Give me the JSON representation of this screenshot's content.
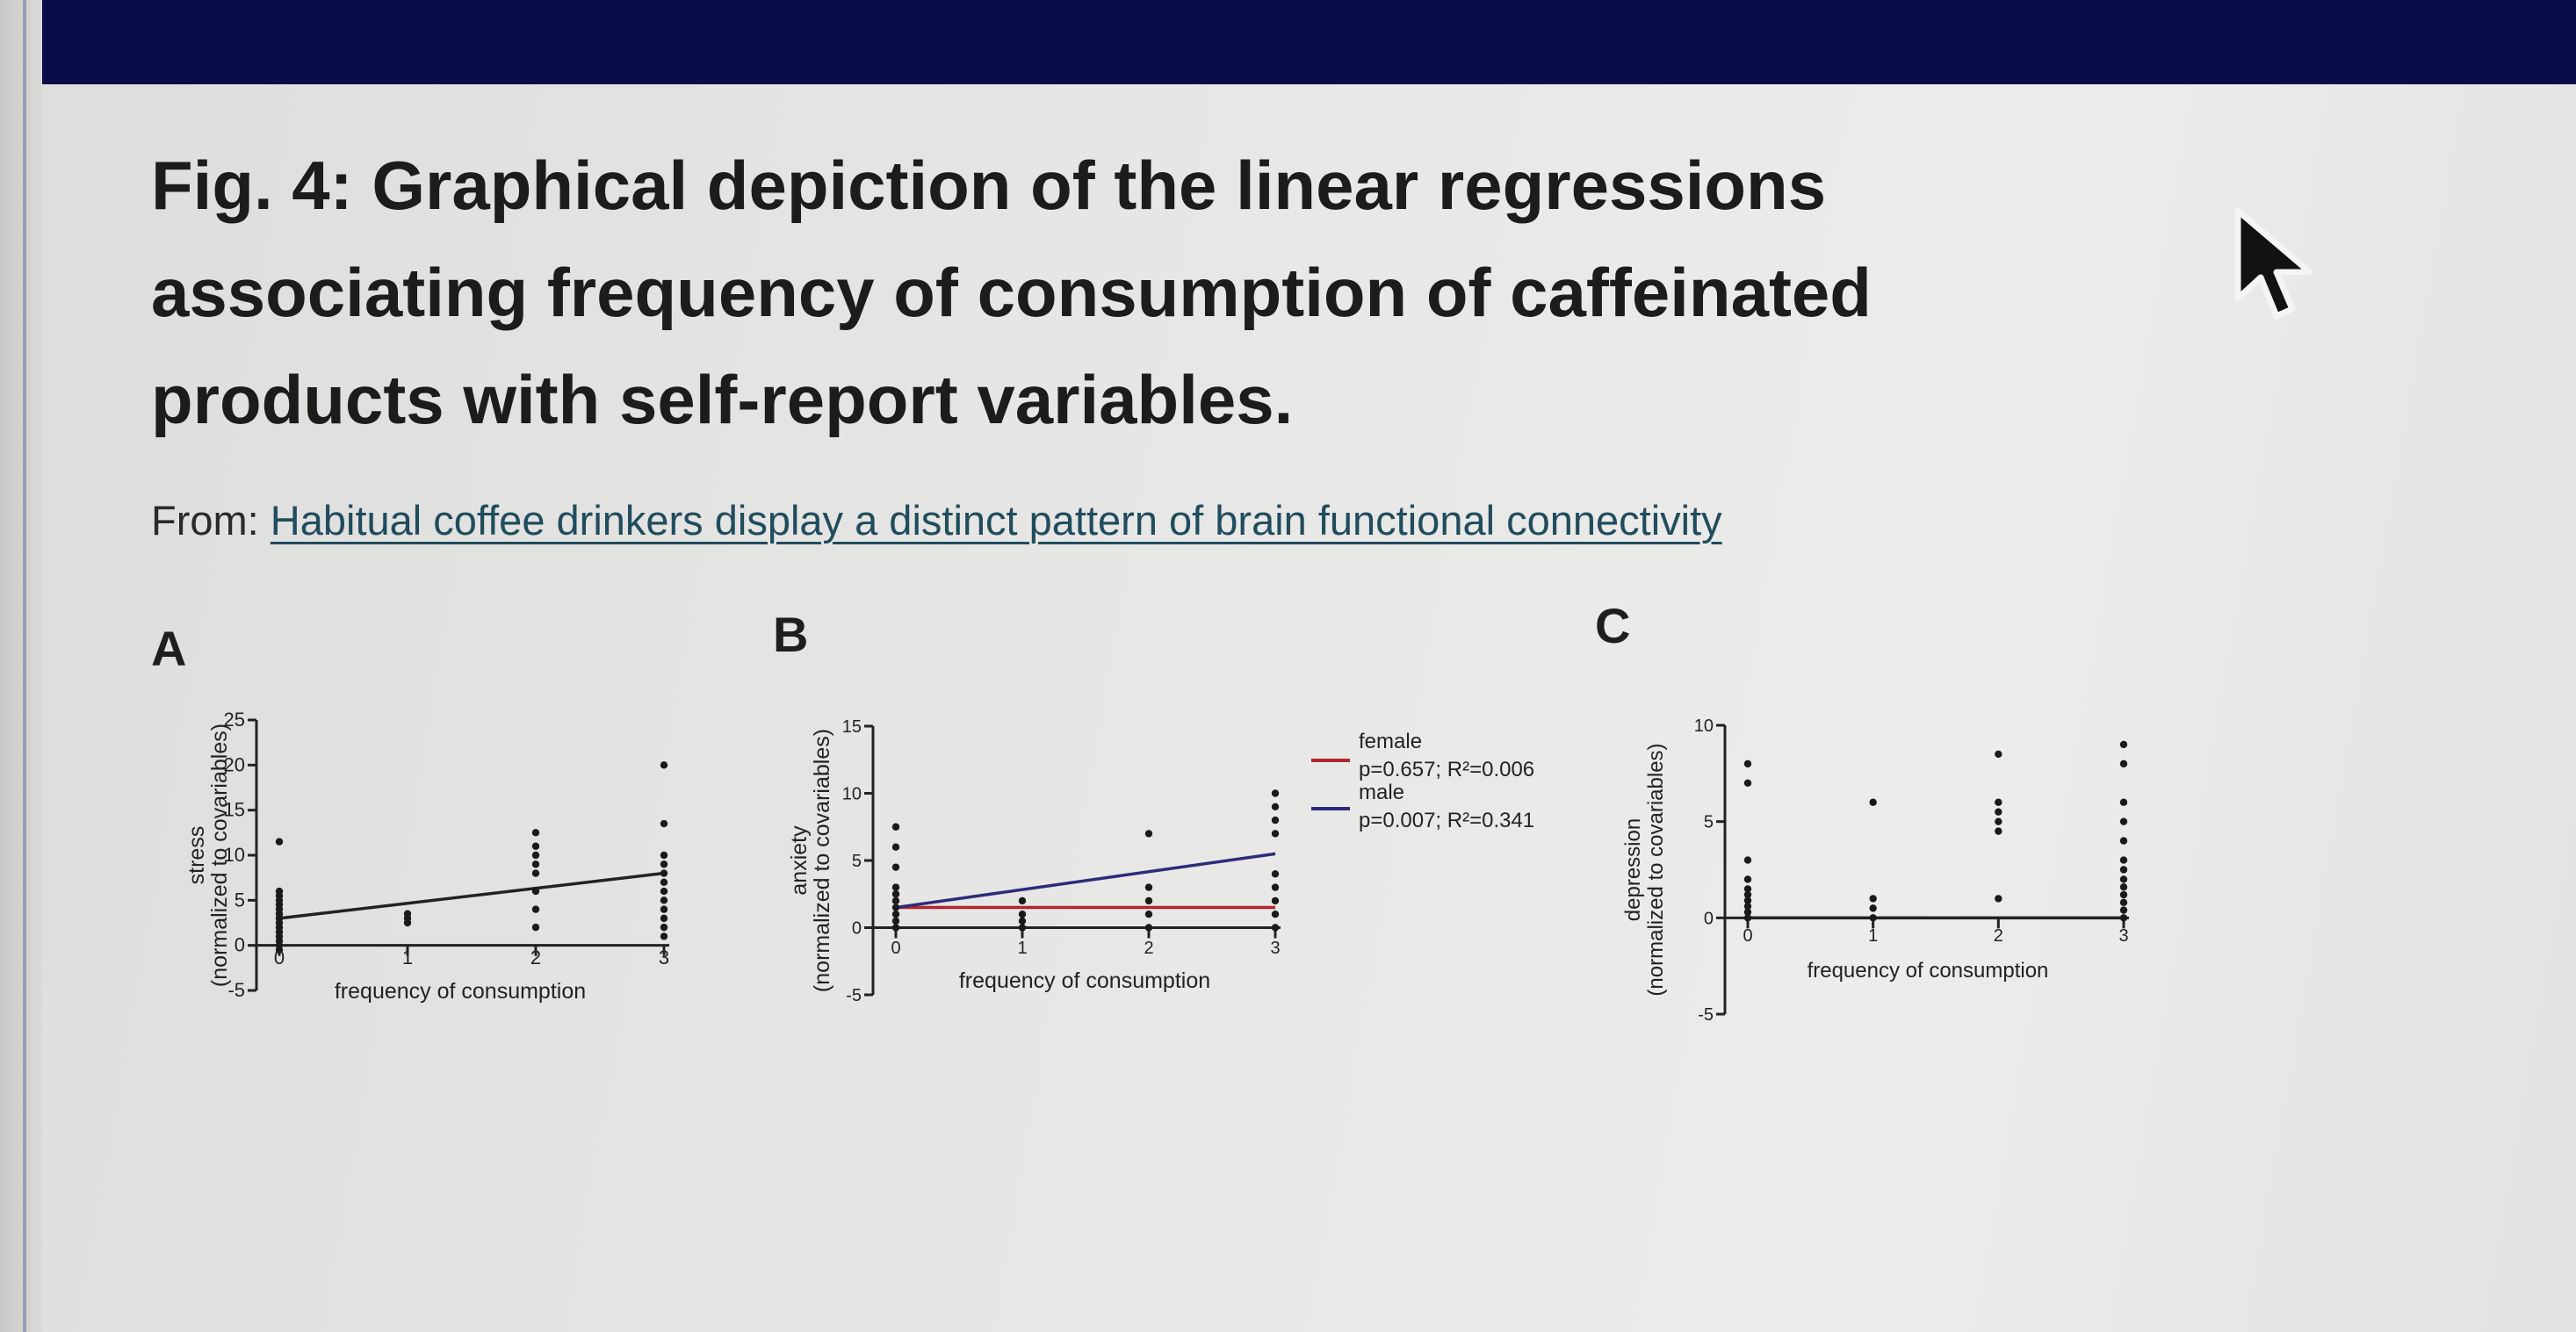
{
  "figure": {
    "title": "Fig. 4: Graphical depiction of the linear regressions associating frequency of consumption of caffeinated products with self-report variables.",
    "from_label": "From:",
    "source_link": "Habitual coffee drinkers display a distinct pattern of brain functional connectivity"
  },
  "panels": [
    {
      "letter": "A"
    },
    {
      "letter": "B"
    },
    {
      "letter": "C"
    }
  ],
  "legend": {
    "female_label": "female",
    "female_stats": "p=0.657; R²=0.006",
    "female_color": "#b0252e",
    "male_label": "male",
    "male_stats": "p=0.007; R²=0.341",
    "male_color": "#2e2a7a"
  },
  "cursor": {
    "icon": "arrow-cursor-icon"
  },
  "chart_data": [
    {
      "type": "scatter",
      "panel": "A",
      "xlabel": "frequency of consumption",
      "ylabel": "stress",
      "ylabel2": "(normalized to covariables)",
      "x_ticks": [
        "0",
        "1",
        "2",
        "3"
      ],
      "y_ticks": [
        -5,
        0,
        5,
        10,
        15,
        20,
        25
      ],
      "ylim": [
        -5,
        25
      ],
      "xlim": [
        0,
        3
      ],
      "points": [
        [
          0,
          -0.5
        ],
        [
          0,
          0
        ],
        [
          0,
          0.5
        ],
        [
          0,
          1
        ],
        [
          0,
          1.5
        ],
        [
          0,
          2
        ],
        [
          0,
          2.5
        ],
        [
          0,
          3
        ],
        [
          0,
          3.5
        ],
        [
          0,
          4
        ],
        [
          0,
          4.5
        ],
        [
          0,
          5
        ],
        [
          0,
          5.5
        ],
        [
          0,
          6
        ],
        [
          0,
          11.5
        ],
        [
          1,
          2.5
        ],
        [
          1,
          3
        ],
        [
          1,
          3.5
        ],
        [
          2,
          2
        ],
        [
          2,
          4
        ],
        [
          2,
          6
        ],
        [
          2,
          8
        ],
        [
          2,
          9
        ],
        [
          2,
          10
        ],
        [
          2,
          11
        ],
        [
          2,
          12.5
        ],
        [
          3,
          1
        ],
        [
          3,
          2
        ],
        [
          3,
          3
        ],
        [
          3,
          4
        ],
        [
          3,
          5
        ],
        [
          3,
          6
        ],
        [
          3,
          7
        ],
        [
          3,
          8
        ],
        [
          3,
          9
        ],
        [
          3,
          10
        ],
        [
          3,
          13.5
        ],
        [
          3,
          20
        ]
      ],
      "regression": [
        {
          "x": [
            0,
            3
          ],
          "y": [
            3,
            8
          ],
          "color": "#222222"
        }
      ]
    },
    {
      "type": "scatter",
      "panel": "B",
      "xlabel": "frequency of consumption",
      "ylabel": "anxiety",
      "ylabel2": "(normalized to covariables)",
      "x_ticks": [
        "0",
        "1",
        "2",
        "3"
      ],
      "y_ticks": [
        -5,
        0,
        5,
        10,
        15
      ],
      "ylim": [
        -5,
        15
      ],
      "xlim": [
        0,
        3
      ],
      "points": [
        [
          0,
          0
        ],
        [
          0,
          0.5
        ],
        [
          0,
          1
        ],
        [
          0,
          1.5
        ],
        [
          0,
          2
        ],
        [
          0,
          2.5
        ],
        [
          0,
          3
        ],
        [
          0,
          4.5
        ],
        [
          0,
          6
        ],
        [
          0,
          7.5
        ],
        [
          1,
          0
        ],
        [
          1,
          0.5
        ],
        [
          1,
          1
        ],
        [
          1,
          2
        ],
        [
          2,
          0
        ],
        [
          2,
          1
        ],
        [
          2,
          2
        ],
        [
          2,
          3
        ],
        [
          2,
          7
        ],
        [
          3,
          0
        ],
        [
          3,
          1
        ],
        [
          3,
          2
        ],
        [
          3,
          3
        ],
        [
          3,
          4
        ],
        [
          3,
          7
        ],
        [
          3,
          8
        ],
        [
          3,
          9
        ],
        [
          3,
          10
        ]
      ],
      "regression": [
        {
          "name": "female",
          "x": [
            0,
            3
          ],
          "y": [
            1.5,
            1.5
          ],
          "color": "#b0252e"
        },
        {
          "name": "male",
          "x": [
            0,
            3
          ],
          "y": [
            1.5,
            5.5
          ],
          "color": "#2e2a7a"
        }
      ]
    },
    {
      "type": "scatter",
      "panel": "C",
      "xlabel": "frequency of consumption",
      "ylabel": "depression",
      "ylabel2": "(normalized to covariables)",
      "x_ticks": [
        "0",
        "1",
        "2",
        "3"
      ],
      "y_ticks": [
        -5,
        0,
        5,
        10
      ],
      "ylim": [
        -5,
        10
      ],
      "xlim": [
        0,
        3
      ],
      "points": [
        [
          0,
          0
        ],
        [
          0,
          0.3
        ],
        [
          0,
          0.6
        ],
        [
          0,
          0.9
        ],
        [
          0,
          1.2
        ],
        [
          0,
          1.5
        ],
        [
          0,
          2
        ],
        [
          0,
          3
        ],
        [
          0,
          7
        ],
        [
          0,
          8
        ],
        [
          1,
          0
        ],
        [
          1,
          0.5
        ],
        [
          1,
          1
        ],
        [
          1,
          6
        ],
        [
          2,
          1
        ],
        [
          2,
          4.5
        ],
        [
          2,
          5
        ],
        [
          2,
          5.5
        ],
        [
          2,
          6
        ],
        [
          2,
          8.5
        ],
        [
          3,
          0
        ],
        [
          3,
          0.4
        ],
        [
          3,
          0.8
        ],
        [
          3,
          1.2
        ],
        [
          3,
          1.6
        ],
        [
          3,
          2
        ],
        [
          3,
          2.5
        ],
        [
          3,
          3
        ],
        [
          3,
          4
        ],
        [
          3,
          5
        ],
        [
          3,
          6
        ],
        [
          3,
          8
        ],
        [
          3,
          9
        ]
      ],
      "regression": [
        {
          "x": [
            0,
            3
          ],
          "y": [
            0,
            0
          ],
          "color": "#222222"
        }
      ]
    }
  ]
}
